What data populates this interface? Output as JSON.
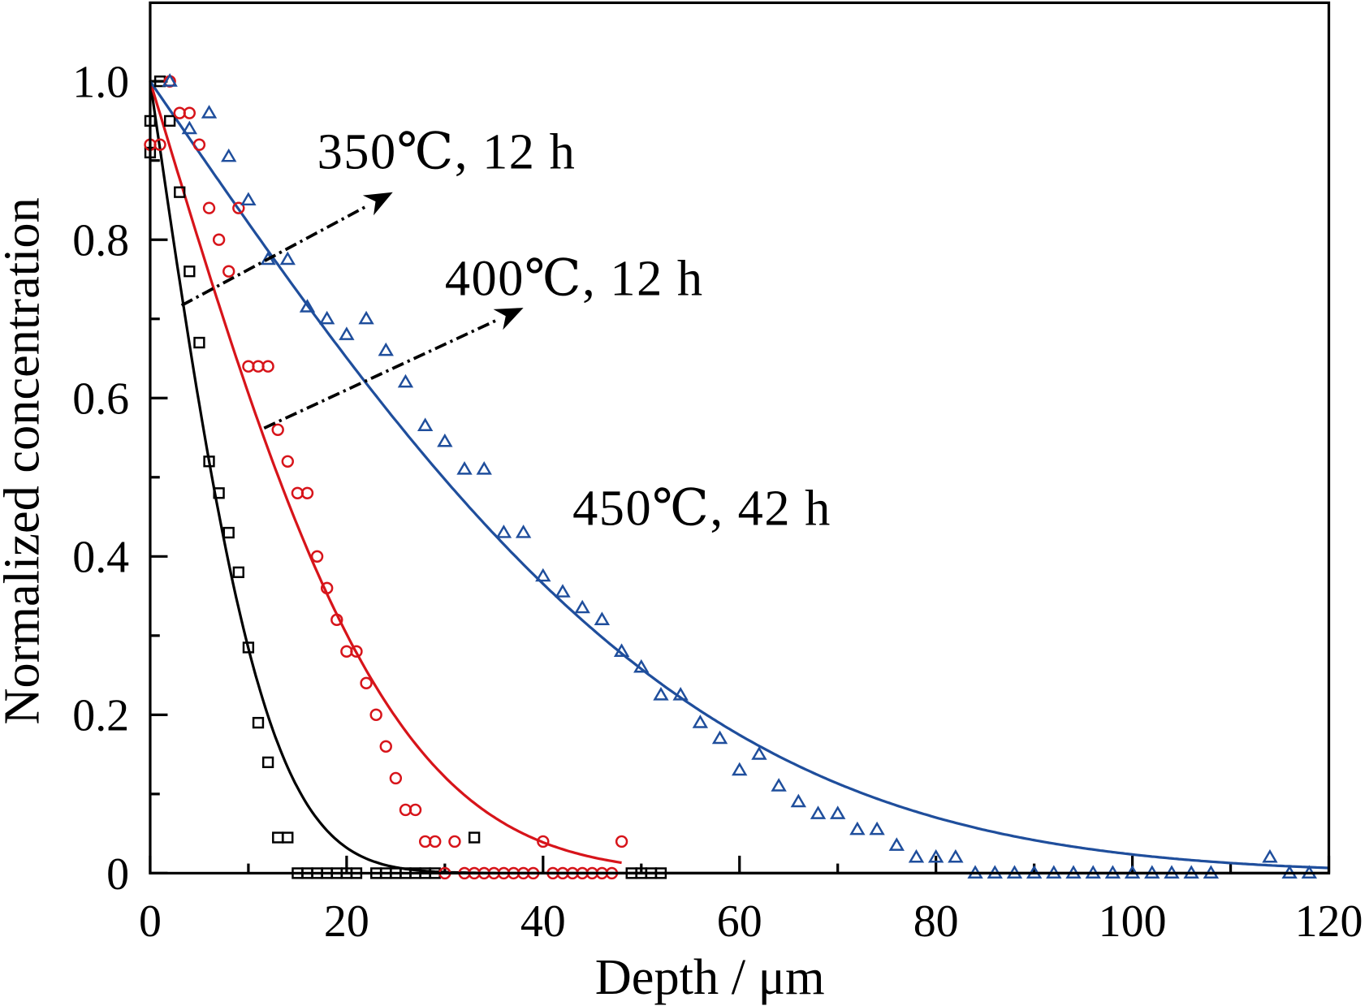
{
  "chart_data": {
    "type": "scatter",
    "title": "",
    "xlabel": "Depth / μm",
    "ylabel": "Normalized concentration",
    "xlim": [
      0,
      120
    ],
    "ylim": [
      0,
      1.1
    ],
    "xticks": [
      0,
      20,
      40,
      60,
      80,
      100,
      120
    ],
    "xtick_labels": [
      "0",
      "20",
      "40",
      "60",
      "80",
      "100",
      "120"
    ],
    "yticks": [
      0,
      0.2,
      0.4,
      0.6,
      0.8,
      1.0
    ],
    "ytick_labels": [
      "0",
      "0.2",
      "0.4",
      "0.6",
      "0.8",
      "1.0"
    ],
    "grid": false,
    "legend": "none",
    "series": [
      {
        "name": "350℃, 12 h",
        "marker": "square",
        "color": "#000000",
        "fit": {
          "model": "erfc",
          "length_um": 13.2,
          "x_range": [
            0,
            120
          ]
        },
        "points": [
          [
            0,
            0.95
          ],
          [
            0,
            0.91
          ],
          [
            1,
            1.0
          ],
          [
            2,
            0.95
          ],
          [
            3,
            0.86
          ],
          [
            4,
            0.76
          ],
          [
            5,
            0.67
          ],
          [
            6,
            0.52
          ],
          [
            7,
            0.48
          ],
          [
            8,
            0.43
          ],
          [
            9,
            0.38
          ],
          [
            10,
            0.285
          ],
          [
            11,
            0.19
          ],
          [
            12,
            0.14
          ],
          [
            13,
            0.045
          ],
          [
            14,
            0.045
          ],
          [
            15,
            0
          ],
          [
            16,
            0
          ],
          [
            17,
            0
          ],
          [
            18,
            0
          ],
          [
            19,
            0
          ],
          [
            20,
            0
          ],
          [
            21,
            0
          ],
          [
            23,
            0
          ],
          [
            24,
            0
          ],
          [
            25,
            0
          ],
          [
            26,
            0
          ],
          [
            27,
            0
          ],
          [
            28,
            0
          ],
          [
            29,
            0
          ],
          [
            33,
            0.045
          ],
          [
            49,
            0
          ],
          [
            50,
            0
          ],
          [
            51,
            0
          ],
          [
            52,
            0
          ]
        ]
      },
      {
        "name": "400℃, 12 h",
        "marker": "circle",
        "color": "#d7141a",
        "fit": {
          "model": "erfc",
          "length_um": 27.4,
          "x_range": [
            0,
            48
          ]
        },
        "points": [
          [
            0,
            0.92
          ],
          [
            1,
            0.92
          ],
          [
            2,
            1.0
          ],
          [
            3,
            0.96
          ],
          [
            4,
            0.96
          ],
          [
            5,
            0.92
          ],
          [
            6,
            0.84
          ],
          [
            7,
            0.8
          ],
          [
            8,
            0.76
          ],
          [
            9,
            0.84
          ],
          [
            10,
            0.64
          ],
          [
            11,
            0.64
          ],
          [
            12,
            0.64
          ],
          [
            13,
            0.56
          ],
          [
            14,
            0.52
          ],
          [
            15,
            0.48
          ],
          [
            16,
            0.48
          ],
          [
            17,
            0.4
          ],
          [
            18,
            0.36
          ],
          [
            19,
            0.32
          ],
          [
            20,
            0.28
          ],
          [
            21,
            0.28
          ],
          [
            22,
            0.24
          ],
          [
            23,
            0.2
          ],
          [
            24,
            0.16
          ],
          [
            25,
            0.12
          ],
          [
            26,
            0.08
          ],
          [
            27,
            0.08
          ],
          [
            28,
            0.04
          ],
          [
            29,
            0.04
          ],
          [
            30,
            0
          ],
          [
            31,
            0.04
          ],
          [
            32,
            0
          ],
          [
            33,
            0
          ],
          [
            34,
            0
          ],
          [
            35,
            0
          ],
          [
            36,
            0
          ],
          [
            37,
            0
          ],
          [
            38,
            0
          ],
          [
            39,
            0
          ],
          [
            40,
            0.04
          ],
          [
            41,
            0
          ],
          [
            42,
            0
          ],
          [
            43,
            0
          ],
          [
            44,
            0
          ],
          [
            45,
            0
          ],
          [
            46,
            0
          ],
          [
            47,
            0
          ],
          [
            48,
            0.04
          ]
        ]
      },
      {
        "name": "450℃, 42 h",
        "marker": "triangle",
        "color": "#1f4e9c",
        "fit": {
          "model": "erfc",
          "length_um": 62.5,
          "x_range": [
            0,
            120
          ]
        },
        "points": [
          [
            2,
            1.0
          ],
          [
            4,
            0.94
          ],
          [
            6,
            0.96
          ],
          [
            8,
            0.905
          ],
          [
            10,
            0.85
          ],
          [
            12,
            0.775
          ],
          [
            14,
            0.775
          ],
          [
            16,
            0.715
          ],
          [
            18,
            0.7
          ],
          [
            20,
            0.68
          ],
          [
            22,
            0.7
          ],
          [
            24,
            0.66
          ],
          [
            26,
            0.62
          ],
          [
            28,
            0.565
          ],
          [
            30,
            0.545
          ],
          [
            32,
            0.51
          ],
          [
            34,
            0.51
          ],
          [
            36,
            0.43
          ],
          [
            38,
            0.43
          ],
          [
            40,
            0.375
          ],
          [
            42,
            0.355
          ],
          [
            44,
            0.335
          ],
          [
            46,
            0.32
          ],
          [
            48,
            0.28
          ],
          [
            50,
            0.26
          ],
          [
            52,
            0.225
          ],
          [
            54,
            0.225
          ],
          [
            56,
            0.19
          ],
          [
            58,
            0.17
          ],
          [
            60,
            0.13
          ],
          [
            62,
            0.15
          ],
          [
            64,
            0.11
          ],
          [
            66,
            0.09
          ],
          [
            68,
            0.075
          ],
          [
            70,
            0.075
          ],
          [
            72,
            0.055
          ],
          [
            74,
            0.055
          ],
          [
            76,
            0.035
          ],
          [
            78,
            0.02
          ],
          [
            80,
            0.02
          ],
          [
            82,
            0.02
          ],
          [
            84,
            0
          ],
          [
            86,
            0
          ],
          [
            88,
            0
          ],
          [
            90,
            0
          ],
          [
            92,
            0
          ],
          [
            94,
            0
          ],
          [
            96,
            0
          ],
          [
            98,
            0
          ],
          [
            100,
            0
          ],
          [
            102,
            0
          ],
          [
            104,
            0
          ],
          [
            106,
            0
          ],
          [
            108,
            0
          ],
          [
            114,
            0.02
          ],
          [
            116,
            0
          ],
          [
            118,
            0
          ]
        ]
      }
    ],
    "annotations": [
      {
        "text": "350℃, 12 h",
        "x": 17,
        "y": 0.89
      },
      {
        "text": "400℃, 12 h",
        "x": 30,
        "y": 0.73
      },
      {
        "text": "450℃, 42 h",
        "x": 43,
        "y": 0.44
      }
    ],
    "arrows": [
      {
        "from": [
          3.2,
          0.717
        ],
        "to": [
          24.7,
          0.86
        ]
      },
      {
        "from": [
          11.6,
          0.562
        ],
        "to": [
          38.0,
          0.714
        ]
      }
    ]
  }
}
